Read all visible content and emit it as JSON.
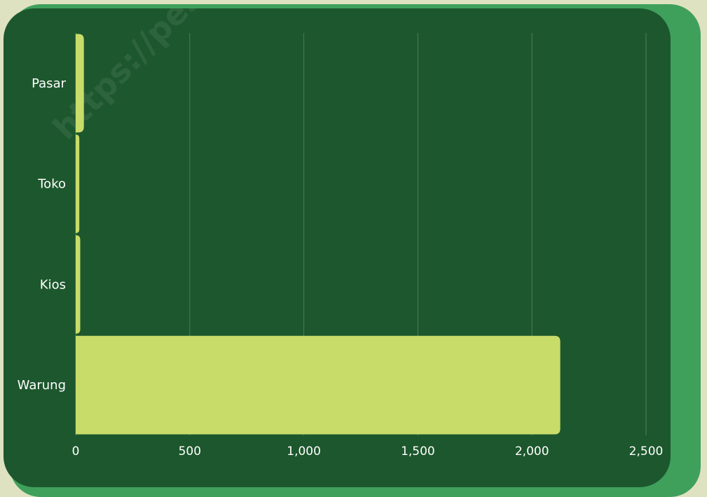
{
  "watermark": "https://pesisirbaratkab.",
  "colors": {
    "background": "#dfe2c1",
    "card": "#1d572d",
    "card_shadow": "#3fa05c",
    "bar": "#c8dc6a",
    "gridline": "#4d7c5d",
    "text": "#ffffff"
  },
  "chart_data": {
    "type": "bar",
    "orientation": "horizontal",
    "categories": [
      "Pasar",
      "Toko",
      "Kios",
      "Warung"
    ],
    "values": [
      36,
      16,
      20,
      2124
    ],
    "xlim": [
      0,
      2500
    ],
    "xticks": [
      0,
      500,
      1000,
      1500,
      2000,
      2500
    ],
    "xtick_labels": [
      "0",
      "500",
      "1,000",
      "1,500",
      "2,000",
      "2,500"
    ],
    "grid": "vertical",
    "title": "",
    "xlabel": "",
    "ylabel": ""
  }
}
